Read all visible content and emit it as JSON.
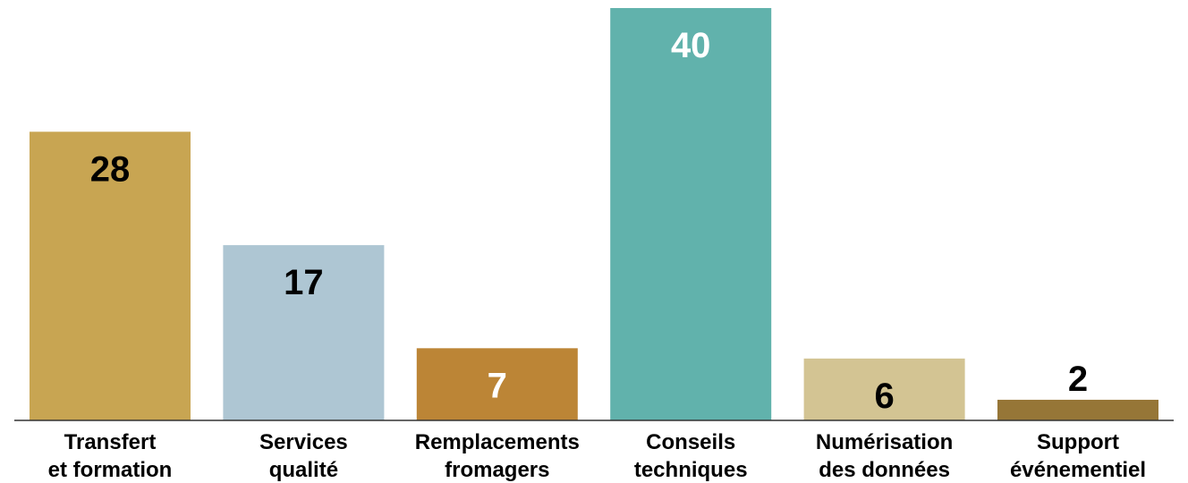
{
  "chart_data": {
    "type": "bar",
    "title": "",
    "xlabel": "",
    "ylabel": "",
    "ylim": [
      0,
      40
    ],
    "grid": false,
    "legend": "none",
    "categories": [
      [
        "Transfert",
        "et formation"
      ],
      [
        "Services",
        "qualité"
      ],
      [
        "Remplacements",
        "fromagers"
      ],
      [
        "Conseils",
        "techniques"
      ],
      [
        "Numérisation",
        "des données"
      ],
      [
        "Support",
        "événementiel"
      ]
    ],
    "values": [
      28,
      17,
      7,
      40,
      6,
      2
    ],
    "colors": [
      "#C8A552",
      "#AEC6D3",
      "#BC8536",
      "#61B2AC",
      "#D3C493",
      "#967637"
    ],
    "label_colors": [
      "#000000",
      "#000000",
      "#ffffff",
      "#ffffff",
      "#000000",
      "#000000"
    ]
  }
}
